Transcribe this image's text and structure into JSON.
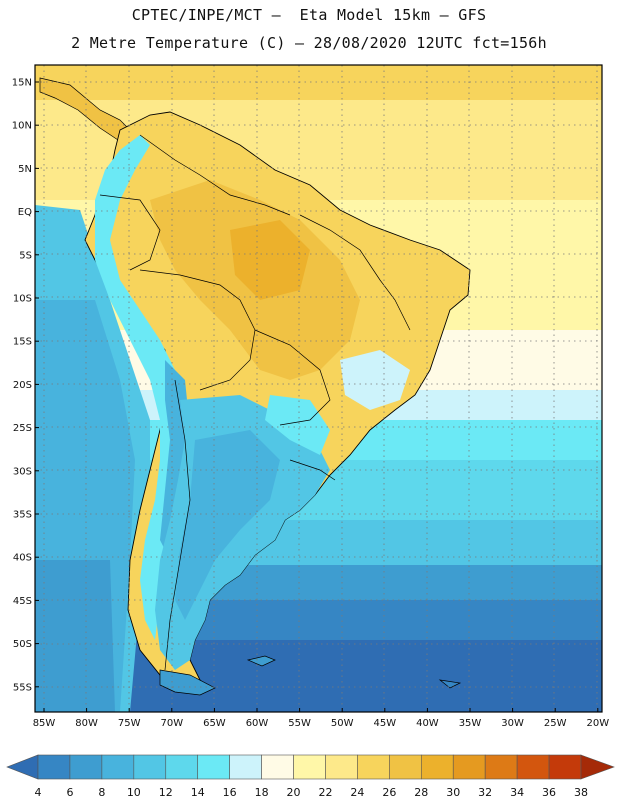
{
  "header": {
    "line1": "CPTEC/INPE/MCT –  Eta Model 15km – GFS",
    "line2": "2 Metre Temperature (C) – 28/08/2020 12UTC fct=156h"
  },
  "lat_labels": [
    "15N",
    "10N",
    "5N",
    "EQ",
    "5S",
    "10S",
    "15S",
    "20S",
    "25S",
    "30S",
    "35S",
    "40S",
    "45S",
    "50S",
    "55S"
  ],
  "lon_labels": [
    "85W",
    "80W",
    "75W",
    "70W",
    "65W",
    "60W",
    "55W",
    "50W",
    "45W",
    "40W",
    "35W",
    "30W",
    "25W",
    "20W"
  ],
  "colorbar": {
    "labels": [
      "4",
      "6",
      "8",
      "10",
      "12",
      "14",
      "16",
      "18",
      "20",
      "22",
      "24",
      "26",
      "28",
      "30",
      "32",
      "34",
      "36",
      "38"
    ],
    "colors": [
      "#2f6db3",
      "#3686c4",
      "#3e9dd0",
      "#48b3dd",
      "#52c6e5",
      "#5ed8ec",
      "#6be9f5",
      "#cdf3fb",
      "#fffbe6",
      "#fff7a8",
      "#fde98a",
      "#f7d45c",
      "#f0c244",
      "#ecb12c",
      "#e59a20",
      "#dd7a16",
      "#d3560e",
      "#c43a0a",
      "#a52a08"
    ]
  },
  "map_colors": {
    "ocean_deep": "#2f6db3",
    "ocean_mid": "#3686c4",
    "ocean_warm": "#5ed8ec",
    "tropical_ocean": "#fde98a",
    "land_hot": "#f0c244",
    "land_warm": "#f7d45c",
    "andes_cold": "#5ed8ec",
    "patagonia": "#3e9dd0"
  }
}
